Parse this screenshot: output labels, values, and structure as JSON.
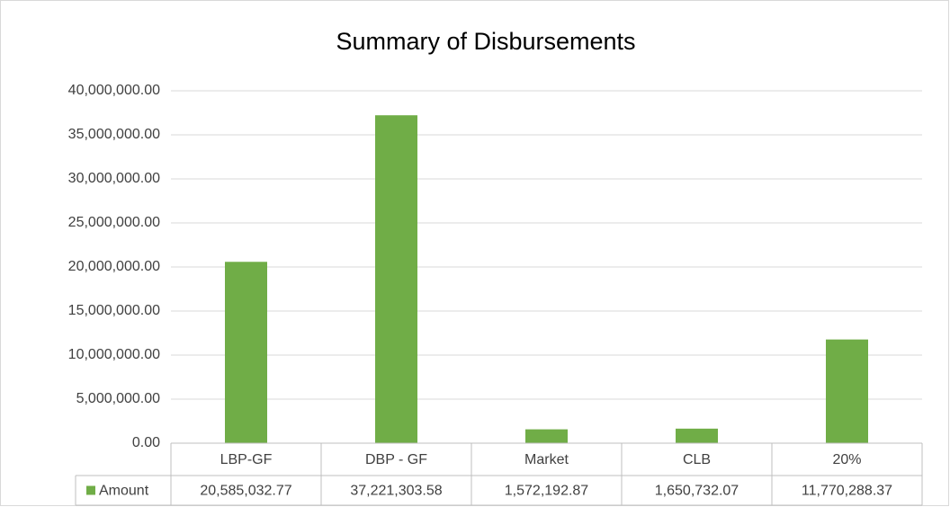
{
  "chart_data": {
    "type": "bar",
    "title": "Summary of Disbursements",
    "categories": [
      "LBP-GF",
      "DBP - GF",
      "Market",
      "CLB",
      "20%"
    ],
    "series": [
      {
        "name": "Amount",
        "color": "#70ad47",
        "values": [
          20585032.77,
          37221303.58,
          1572192.87,
          1650732.07,
          11770288.37
        ],
        "value_labels": [
          "20,585,032.77",
          "37,221,303.58",
          "1,572,192.87",
          "1,650,732.07",
          "11,770,288.37"
        ]
      }
    ],
    "ylim": [
      0,
      40000000
    ],
    "yticks": [
      {
        "value": 0,
        "label": "0.00"
      },
      {
        "value": 5000000,
        "label": "5,000,000.00"
      },
      {
        "value": 10000000,
        "label": "10,000,000.00"
      },
      {
        "value": 15000000,
        "label": "15,000,000.00"
      },
      {
        "value": 20000000,
        "label": "20,000,000.00"
      },
      {
        "value": 25000000,
        "label": "25,000,000.00"
      },
      {
        "value": 30000000,
        "label": "30,000,000.00"
      },
      {
        "value": 35000000,
        "label": "35,000,000.00"
      },
      {
        "value": 40000000,
        "label": "40,000,000.00"
      }
    ],
    "grid": true
  }
}
